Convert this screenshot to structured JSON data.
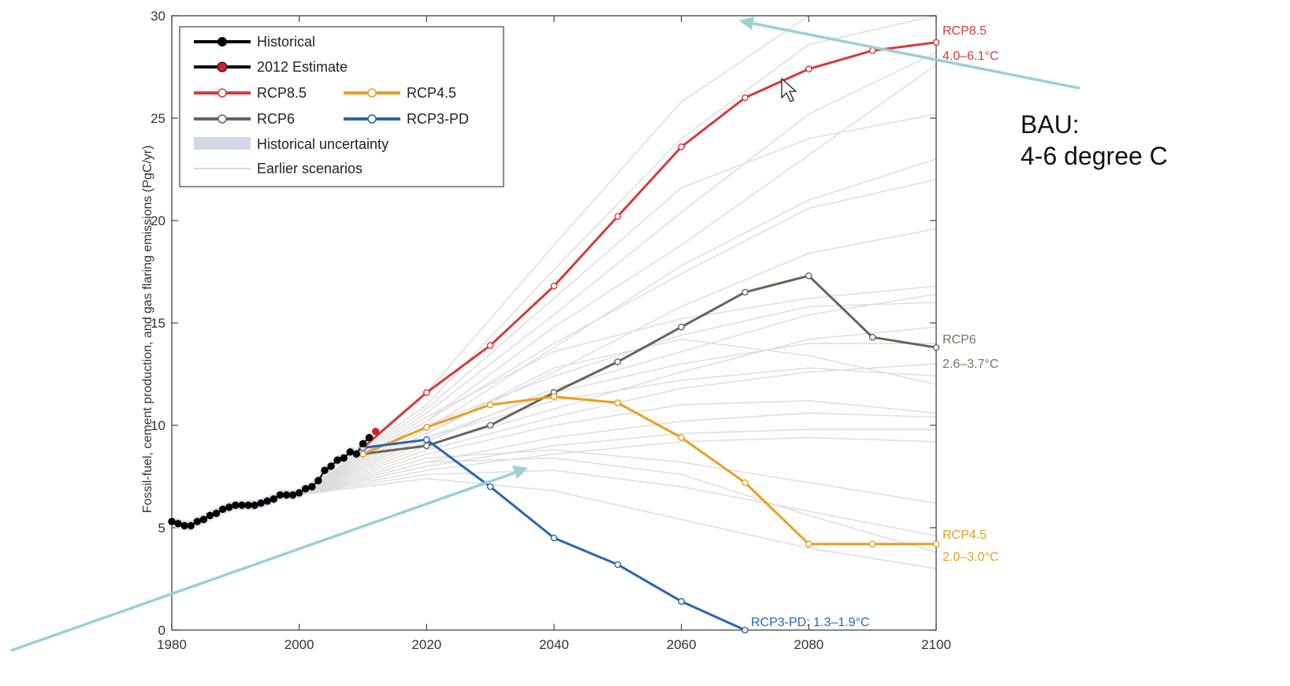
{
  "chart_data": {
    "type": "line",
    "ylabel": "Fossil-fuel, cement production, and gas flaring emissions (PgC/yr)",
    "xlim": [
      1980,
      2100
    ],
    "ylim": [
      0,
      30
    ],
    "xticks": [
      "1980",
      "2000",
      "2020",
      "2040",
      "2060",
      "2080",
      "2100"
    ],
    "yticks": [
      "0",
      "5",
      "10",
      "15",
      "20",
      "25",
      "30"
    ],
    "legend_position": "top-left",
    "legend": [
      {
        "label": "Historical",
        "color": "#000000"
      },
      {
        "label": "2012 Estimate",
        "color": "#d0202a"
      },
      {
        "label": "RCP8.5",
        "color": "#d9393c"
      },
      {
        "label": "RCP4.5",
        "color": "#e8a020"
      },
      {
        "label": "RCP6",
        "color": "#6d615a"
      },
      {
        "label": "RCP3-PD",
        "color": "#2a66b0"
      },
      {
        "label": "Historical uncertainty",
        "color": "#d6d6ea"
      },
      {
        "label": "Earlier scenarios",
        "color": "#d9d9d9"
      }
    ],
    "series": [
      {
        "name": "Historical",
        "color": "#000000",
        "marker": "filled",
        "x": [
          1980,
          1981,
          1982,
          1983,
          1984,
          1985,
          1986,
          1987,
          1988,
          1989,
          1990,
          1991,
          1992,
          1993,
          1994,
          1995,
          1996,
          1997,
          1998,
          1999,
          2000,
          2001,
          2002,
          2003,
          2004,
          2005,
          2006,
          2007,
          2008,
          2009,
          2010,
          2011
        ],
        "y": [
          5.3,
          5.2,
          5.1,
          5.1,
          5.3,
          5.4,
          5.6,
          5.7,
          5.9,
          6.0,
          6.1,
          6.1,
          6.1,
          6.1,
          6.2,
          6.3,
          6.4,
          6.6,
          6.6,
          6.6,
          6.7,
          6.9,
          7.0,
          7.3,
          7.8,
          8.0,
          8.3,
          8.4,
          8.7,
          8.6,
          9.1,
          9.4
        ]
      },
      {
        "name": "2012 Estimate",
        "color": "#d0202a",
        "marker": "filled",
        "x": [
          2012
        ],
        "y": [
          9.7
        ]
      },
      {
        "name": "RCP8.5",
        "color": "#d9393c",
        "marker": "open",
        "x": [
          2010,
          2020,
          2030,
          2040,
          2050,
          2060,
          2070,
          2080,
          2090,
          2100
        ],
        "y": [
          8.9,
          11.6,
          13.9,
          16.8,
          20.2,
          23.6,
          26.0,
          27.4,
          28.3,
          28.7
        ]
      },
      {
        "name": "RCP6",
        "color": "#6d615a",
        "marker": "open",
        "x": [
          2010,
          2020,
          2030,
          2040,
          2050,
          2060,
          2070,
          2080,
          2090,
          2100
        ],
        "y": [
          8.6,
          9.0,
          10.0,
          11.6,
          13.1,
          14.8,
          16.5,
          17.3,
          14.3,
          13.8
        ]
      },
      {
        "name": "RCP4.5",
        "color": "#e8a020",
        "marker": "open",
        "x": [
          2010,
          2020,
          2030,
          2040,
          2050,
          2060,
          2070,
          2080,
          2090,
          2100
        ],
        "y": [
          8.6,
          9.9,
          11.0,
          11.4,
          11.1,
          9.4,
          7.2,
          4.2,
          4.2,
          4.2
        ]
      },
      {
        "name": "RCP3-PD",
        "color": "#2a66b0",
        "marker": "open",
        "x": [
          2010,
          2020,
          2030,
          2040,
          2050,
          2060,
          2070
        ],
        "y": [
          8.9,
          9.3,
          7.0,
          4.5,
          3.2,
          1.4,
          0.0
        ]
      }
    ],
    "earlier_scenarios": [
      {
        "x": [
          2000,
          2020,
          2040,
          2060,
          2080,
          2100
        ],
        "y": [
          6.6,
          10.2,
          14.8,
          18.8,
          23.2,
          27.6
        ]
      },
      {
        "x": [
          2000,
          2020,
          2040,
          2060,
          2080,
          2100
        ],
        "y": [
          6.6,
          11.0,
          17.6,
          24.0,
          28.6,
          30.0
        ]
      },
      {
        "x": [
          2000,
          2020,
          2040,
          2060,
          2080,
          2100
        ],
        "y": [
          6.6,
          9.6,
          12.6,
          15.8,
          18.4,
          19.6
        ]
      },
      {
        "x": [
          2000,
          2020,
          2040,
          2060,
          2080,
          2100
        ],
        "y": [
          6.6,
          8.8,
          10.4,
          11.8,
          12.6,
          13.0
        ]
      },
      {
        "x": [
          2000,
          2020,
          2040,
          2060,
          2080,
          2100
        ],
        "y": [
          6.6,
          9.2,
          11.8,
          13.6,
          15.4,
          16.4
        ]
      },
      {
        "x": [
          2000,
          2020,
          2040,
          2060,
          2080,
          2100
        ],
        "y": [
          6.6,
          10.6,
          15.4,
          20.4,
          25.2,
          28.2
        ]
      },
      {
        "x": [
          2000,
          2020,
          2040,
          2060,
          2080,
          2100
        ],
        "y": [
          6.6,
          8.2,
          9.4,
          10.2,
          10.6,
          10.4
        ]
      },
      {
        "x": [
          2000,
          2020,
          2040,
          2060,
          2080,
          2100
        ],
        "y": [
          6.6,
          9.4,
          11.2,
          12.2,
          12.8,
          12.4
        ]
      },
      {
        "x": [
          2000,
          2020,
          2040,
          2060,
          2080,
          2100
        ],
        "y": [
          6.6,
          8.4,
          8.8,
          8.2,
          7.2,
          6.2
        ]
      },
      {
        "x": [
          2000,
          2020,
          2040,
          2060,
          2080,
          2100
        ],
        "y": [
          6.6,
          7.6,
          7.8,
          7.0,
          5.8,
          4.6
        ]
      },
      {
        "x": [
          2000,
          2020,
          2040,
          2060,
          2080,
          2100
        ],
        "y": [
          6.6,
          9.8,
          13.8,
          17.8,
          21.0,
          23.0
        ]
      },
      {
        "x": [
          2000,
          2020,
          2040,
          2060,
          2080,
          2100
        ],
        "y": [
          6.6,
          10.4,
          13.6,
          15.2,
          16.2,
          16.8
        ]
      },
      {
        "x": [
          2000,
          2020,
          2040,
          2060,
          2080,
          2100
        ],
        "y": [
          6.6,
          11.6,
          18.8,
          25.8,
          30.0,
          30.0
        ]
      },
      {
        "x": [
          2000,
          2020,
          2040,
          2060,
          2080,
          2100
        ],
        "y": [
          6.6,
          8.6,
          10.0,
          11.0,
          11.2,
          10.6
        ]
      },
      {
        "x": [
          2000,
          2020,
          2040,
          2060,
          2080,
          2100
        ],
        "y": [
          6.6,
          7.8,
          8.6,
          9.2,
          9.4,
          9.2
        ]
      },
      {
        "x": [
          2000,
          2020,
          2040,
          2060,
          2080,
          2100
        ],
        "y": [
          6.6,
          9.0,
          10.8,
          12.6,
          14.2,
          14.8
        ]
      },
      {
        "x": [
          2000,
          2020,
          2040,
          2060,
          2080,
          2100
        ],
        "y": [
          6.6,
          10.0,
          12.4,
          14.4,
          15.8,
          16.0
        ]
      },
      {
        "x": [
          2000,
          2020,
          2040,
          2060,
          2080,
          2100
        ],
        "y": [
          6.6,
          9.6,
          12.8,
          14.2,
          13.4,
          12.0
        ]
      },
      {
        "x": [
          2000,
          2020,
          2040,
          2060,
          2080,
          2100
        ],
        "y": [
          6.6,
          8.2,
          8.4,
          7.6,
          5.6,
          3.8
        ]
      },
      {
        "x": [
          2000,
          2020,
          2040,
          2060,
          2080,
          2100
        ],
        "y": [
          6.6,
          10.8,
          16.2,
          21.6,
          24.0,
          25.2
        ]
      },
      {
        "x": [
          2000,
          2020,
          2040,
          2060,
          2080,
          2100
        ],
        "y": [
          6.6,
          9.4,
          11.6,
          13.0,
          14.0,
          14.0
        ]
      },
      {
        "x": [
          2000,
          2020,
          2040,
          2060,
          2080,
          2100
        ],
        "y": [
          6.6,
          7.4,
          6.8,
          5.4,
          4.0,
          3.0
        ]
      },
      {
        "x": [
          2000,
          2020,
          2040,
          2060,
          2080,
          2100
        ],
        "y": [
          6.6,
          8.0,
          9.0,
          9.6,
          9.8,
          9.8
        ]
      },
      {
        "x": [
          2000,
          2020,
          2040,
          2060,
          2080,
          2100
        ],
        "y": [
          6.6,
          10.2,
          14.0,
          17.4,
          20.6,
          22.0
        ]
      }
    ],
    "end_labels": [
      {
        "line1": "RCP8.5",
        "line2": "4.0–6.1°C",
        "color": "#d9393c"
      },
      {
        "line1": "RCP6",
        "line2": "2.6–3.7°C",
        "color": "#7a7067"
      },
      {
        "line1": "RCP4.5",
        "line2": "2.0–3.0°C",
        "color": "#e8a020"
      },
      {
        "line1": "RCP3-PD: 1.3–1.9°C",
        "line2": "",
        "color": "#2a66b0"
      }
    ]
  },
  "annotation": {
    "line1": "BAU:",
    "line2": "4-6 degree C",
    "arrow_color": "#9ccfd6"
  }
}
